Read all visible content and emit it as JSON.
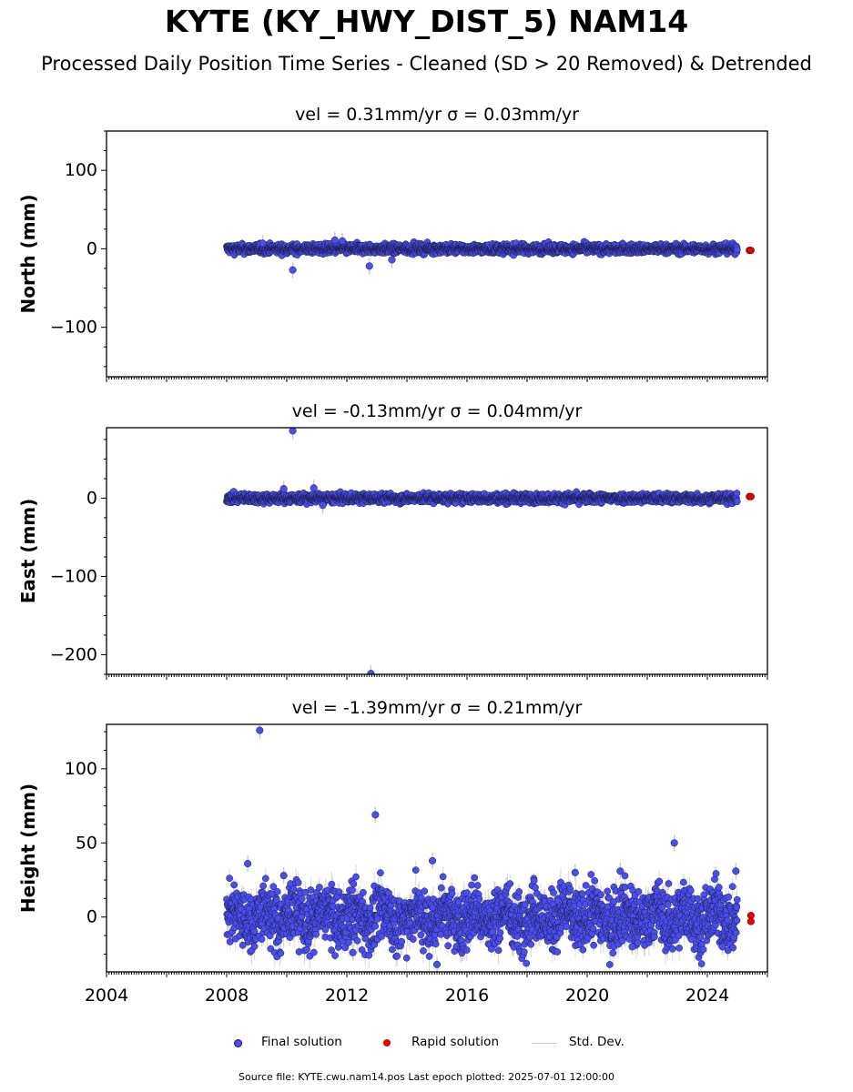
{
  "figure": {
    "title": "KYTE (KY_HWY_DIST_5) NAM14",
    "subtitle": "Processed Daily Position Time Series - Cleaned (SD > 20 Removed) & Detrended",
    "footer": "Source file: KYTE.cwu.nam14.pos  Last epoch plotted: 2025-07-01 12:00:00",
    "colors": {
      "final": "#4a4df0",
      "rapid": "#e00000",
      "stddev": "#c8c8c8",
      "edge": "#1a1a40"
    }
  },
  "legend": {
    "final_label": "Final solution",
    "rapid_label": "Rapid solution",
    "std_label": "Std. Dev."
  },
  "chart_data": [
    {
      "type": "scatter",
      "panel": "north",
      "title": "vel = 0.31mm/yr   σ = 0.03mm/yr",
      "ylabel": "North (mm)",
      "xlim": [
        2004,
        2026
      ],
      "ylim": [
        -163,
        150
      ],
      "ytick_labels": [
        {
          "value": 100,
          "label": "100"
        },
        {
          "value": 0,
          "label": "0"
        },
        {
          "value": -100,
          "label": "−100"
        }
      ],
      "band": {
        "start": 2008.0,
        "end": 2025.0,
        "amp": 3,
        "sd": 4
      },
      "outliers": [
        {
          "x": 2010.2,
          "y": -27
        },
        {
          "x": 2011.6,
          "y": 11
        },
        {
          "x": 2011.85,
          "y": 10
        },
        {
          "x": 2012.75,
          "y": -22
        },
        {
          "x": 2013.5,
          "y": -14
        },
        {
          "x": 2009.2,
          "y": 7
        }
      ],
      "rapid": [
        {
          "x": 2025.4,
          "y": -2
        },
        {
          "x": 2025.45,
          "y": -2
        }
      ]
    },
    {
      "type": "scatter",
      "panel": "east",
      "title": "vel = -0.13mm/yr   σ = 0.04mm/yr",
      "ylabel": "East (mm)",
      "xlim": [
        2004,
        2026
      ],
      "ylim": [
        -225,
        90
      ],
      "ytick_labels": [
        {
          "value": 0,
          "label": "0"
        },
        {
          "value": -100,
          "label": "−100"
        },
        {
          "value": -200,
          "label": "−200"
        }
      ],
      "band": {
        "start": 2008.0,
        "end": 2025.0,
        "amp": 3,
        "sd": 4
      },
      "outliers": [
        {
          "x": 2010.2,
          "y": 86
        },
        {
          "x": 2009.9,
          "y": 12
        },
        {
          "x": 2010.9,
          "y": 13
        },
        {
          "x": 2011.2,
          "y": -9
        },
        {
          "x": 2012.8,
          "y": -224
        }
      ],
      "rapid": [
        {
          "x": 2025.4,
          "y": 2
        },
        {
          "x": 2025.45,
          "y": 2
        }
      ]
    },
    {
      "type": "scatter",
      "panel": "height",
      "title": "vel = -1.39mm/yr   σ = 0.21mm/yr",
      "ylabel": "Height (mm)",
      "xlabel": "",
      "xlim": [
        2004,
        2026
      ],
      "ylim": [
        -37,
        130
      ],
      "ytick_labels": [
        {
          "value": 100,
          "label": "100"
        },
        {
          "value": 50,
          "label": "50"
        },
        {
          "value": 0,
          "label": "0"
        }
      ],
      "xtick_labels": [
        {
          "value": 2004,
          "label": "2004"
        },
        {
          "value": 2008,
          "label": "2008"
        },
        {
          "value": 2012,
          "label": "2012"
        },
        {
          "value": 2016,
          "label": "2016"
        },
        {
          "value": 2020,
          "label": "2020"
        },
        {
          "value": 2024,
          "label": "2024"
        }
      ],
      "band": {
        "start": 2008.0,
        "end": 2025.0,
        "amp": 10,
        "sd": 7
      },
      "outliers": [
        {
          "x": 2009.1,
          "y": 126
        },
        {
          "x": 2012.95,
          "y": 69
        },
        {
          "x": 2022.9,
          "y": 50
        },
        {
          "x": 2014.85,
          "y": 38
        },
        {
          "x": 2008.7,
          "y": 36
        },
        {
          "x": 2009.9,
          "y": 28
        },
        {
          "x": 2012.2,
          "y": -24
        },
        {
          "x": 2015.0,
          "y": -32
        },
        {
          "x": 2021.5,
          "y": -20
        },
        {
          "x": 2024.5,
          "y": -20
        },
        {
          "x": 2024.95,
          "y": 31
        },
        {
          "x": 2021.1,
          "y": 31
        },
        {
          "x": 2019.6,
          "y": 30
        }
      ],
      "rapid": [
        {
          "x": 2025.45,
          "y": 1
        },
        {
          "x": 2025.45,
          "y": -3
        }
      ]
    }
  ]
}
